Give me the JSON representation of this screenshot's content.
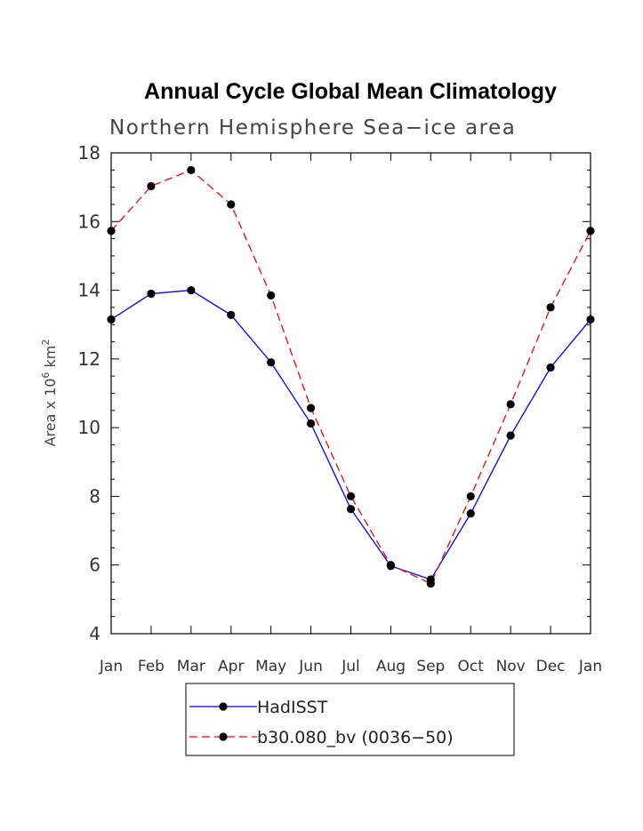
{
  "chart_data": {
    "type": "line",
    "title": "Annual Cycle Global Mean Climatology",
    "subtitle": "Northern Hemisphere Sea−ice area",
    "xlabel": "",
    "ylabel": "Area x 10",
    "ylabel_exp": "6",
    "ylabel_unit": "km",
    "ylabel_unit_exp": "2",
    "categories": [
      "Jan",
      "Feb",
      "Mar",
      "Apr",
      "May",
      "Jun",
      "Jul",
      "Aug",
      "Sep",
      "Oct",
      "Nov",
      "Dec",
      "Jan"
    ],
    "ylim": [
      4,
      18
    ],
    "yticks": [
      4,
      6,
      8,
      10,
      12,
      14,
      16,
      18
    ],
    "grid": false,
    "legend_placement": "bottom",
    "series": [
      {
        "name": "HadISST",
        "color": "#0000ff",
        "dash": "solid",
        "values": [
          13.15,
          13.9,
          14.0,
          13.28,
          11.9,
          10.12,
          7.63,
          5.97,
          5.58,
          7.5,
          9.77,
          11.75,
          13.15
        ]
      },
      {
        "name": "b30.080_bv (0036−50)",
        "color": "#ff0000",
        "dash": "dashed",
        "values": [
          15.73,
          17.03,
          17.5,
          16.5,
          13.85,
          10.57,
          8.0,
          6.0,
          5.46,
          8.0,
          10.68,
          13.5,
          15.73
        ]
      }
    ]
  }
}
